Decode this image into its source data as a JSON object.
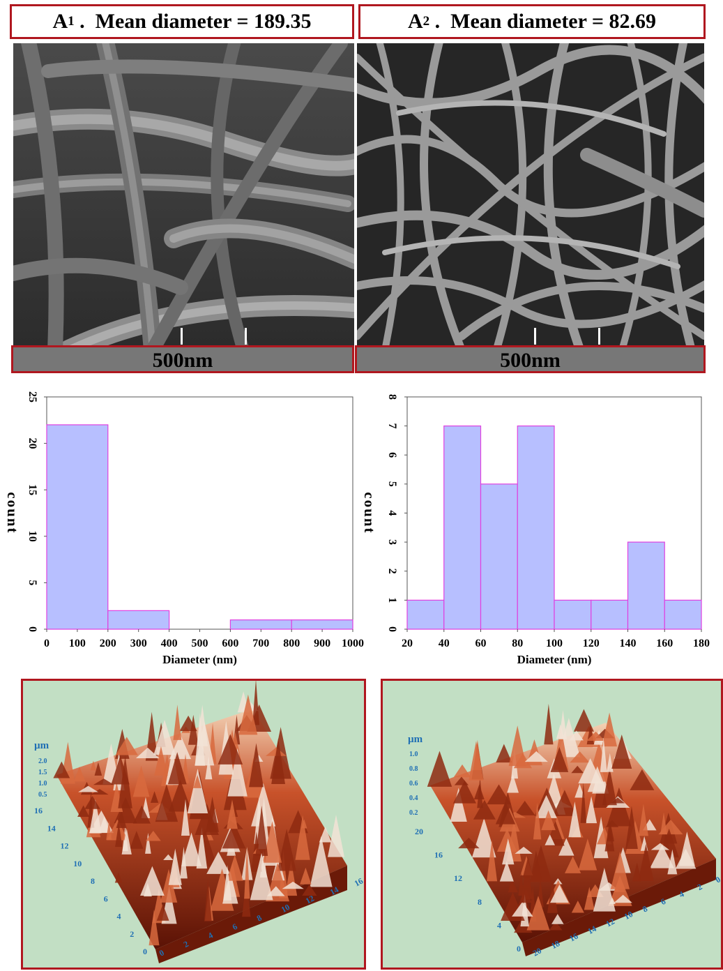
{
  "panels": [
    {
      "letter": "A",
      "sub": "1",
      "title_rest": " .  Mean diameter = 189.35",
      "scale": "500nm"
    },
    {
      "letter": "A",
      "sub": "2",
      "title_rest": " .  Mean diameter = 82.69",
      "scale": "500nm"
    }
  ],
  "chart_data": [
    {
      "type": "bar",
      "xlabel": "Diameter (nm)",
      "ylabel": "count",
      "bins": [
        [
          0,
          200
        ],
        [
          200,
          400
        ],
        [
          400,
          600
        ],
        [
          600,
          800
        ],
        [
          800,
          1000
        ]
      ],
      "values": [
        22,
        2,
        0,
        1,
        1
      ],
      "xticks": [
        "0",
        "100",
        "200",
        "300",
        "400",
        "500",
        "600",
        "700",
        "800",
        "900",
        "1000"
      ],
      "yticks": [
        "0",
        "5",
        "10",
        "15",
        "20",
        "25"
      ],
      "xlim": [
        0,
        1000
      ],
      "ylim": [
        0,
        25
      ],
      "bar_color": "#b7bfff",
      "edge_color": "#e040e0"
    },
    {
      "type": "bar",
      "xlabel": "Diameter (nm)",
      "ylabel": "count",
      "bins": [
        [
          20,
          40
        ],
        [
          40,
          60
        ],
        [
          60,
          80
        ],
        [
          80,
          100
        ],
        [
          100,
          120
        ],
        [
          120,
          140
        ],
        [
          140,
          160
        ],
        [
          160,
          180
        ]
      ],
      "values": [
        1,
        7,
        5,
        7,
        1,
        1,
        3,
        1
      ],
      "xticks": [
        "20",
        "40",
        "60",
        "80",
        "100",
        "120",
        "140",
        "160",
        "180"
      ],
      "yticks": [
        "0",
        "1",
        "2",
        "3",
        "4",
        "5",
        "6",
        "7",
        "8"
      ],
      "xlim": [
        20,
        180
      ],
      "ylim": [
        0,
        8
      ],
      "bar_color": "#b7bfff",
      "edge_color": "#e040e0"
    }
  ],
  "afm": [
    {
      "unit": "µm",
      "z_ticks": [
        "2.0",
        "1.5",
        "1.0",
        "0.5"
      ],
      "y_ticks": [
        "16",
        "14",
        "12",
        "10",
        "8",
        "6",
        "4",
        "2",
        "0"
      ],
      "x_ticks": [
        "0",
        "2",
        "4",
        "6",
        "8",
        "10",
        "12",
        "14",
        "16"
      ]
    },
    {
      "unit": "µm",
      "z_ticks": [
        "1.0",
        "0.8",
        "0.6",
        "0.4",
        "0.2"
      ],
      "y_ticks": [
        "20",
        "16",
        "12",
        "8",
        "4",
        "0"
      ],
      "x_ticks": [
        "20",
        "18",
        "16",
        "14",
        "12",
        "10",
        "8",
        "6",
        "4",
        "2",
        "0"
      ]
    }
  ]
}
